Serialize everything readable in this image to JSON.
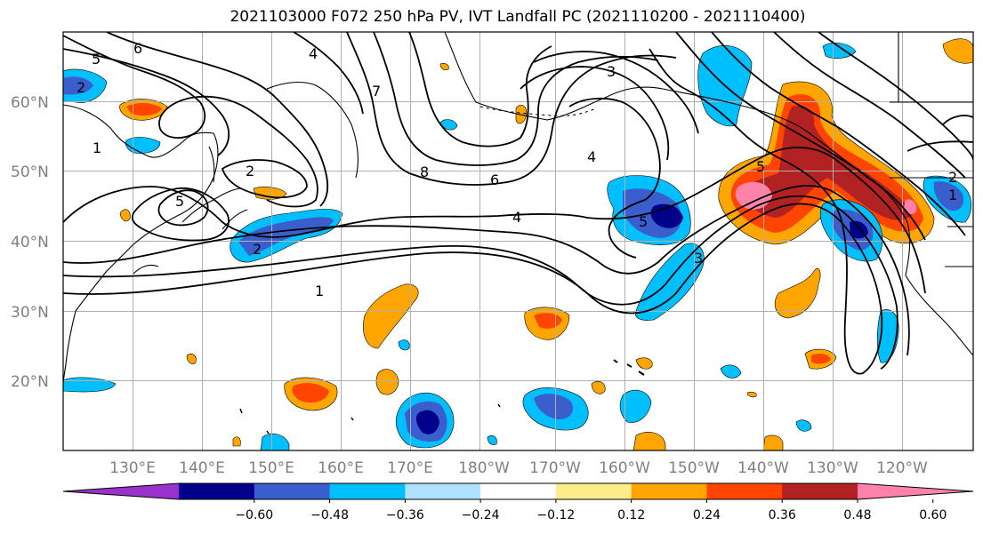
{
  "title": "2021103000 F072 250 hPa PV, IVT Landfall PC (2021110200 - 2021110400)",
  "lat_ticks": [
    "60°N",
    "50°N",
    "40°N",
    "30°N",
    "20°N"
  ],
  "lon_ticks": [
    "130°E",
    "140°E",
    "150°E",
    "160°E",
    "170°E",
    "180°W",
    "170°W",
    "160°W",
    "150°W",
    "140°W",
    "130°W",
    "120°W"
  ],
  "colorbar": {
    "ticks": [
      "−0.60",
      "−0.48",
      "−0.36",
      "−0.24",
      "−0.12",
      "0.12",
      "0.24",
      "0.36",
      "0.48",
      "0.60"
    ],
    "colors": [
      "#9932cc",
      "#00008b",
      "#3a5fcd",
      "#00bfff",
      "#b0e2ff",
      "#ffffff",
      "#ffec8b",
      "#ffa500",
      "#ff4500",
      "#b22222",
      "#ff82ab"
    ]
  },
  "contour_labels": [
    "6",
    "5",
    "2",
    "1",
    "5",
    "2",
    "7",
    "4",
    "8",
    "6",
    "4",
    "3",
    "4",
    "5",
    "3",
    "5",
    "1",
    "2",
    "1",
    "2"
  ]
}
